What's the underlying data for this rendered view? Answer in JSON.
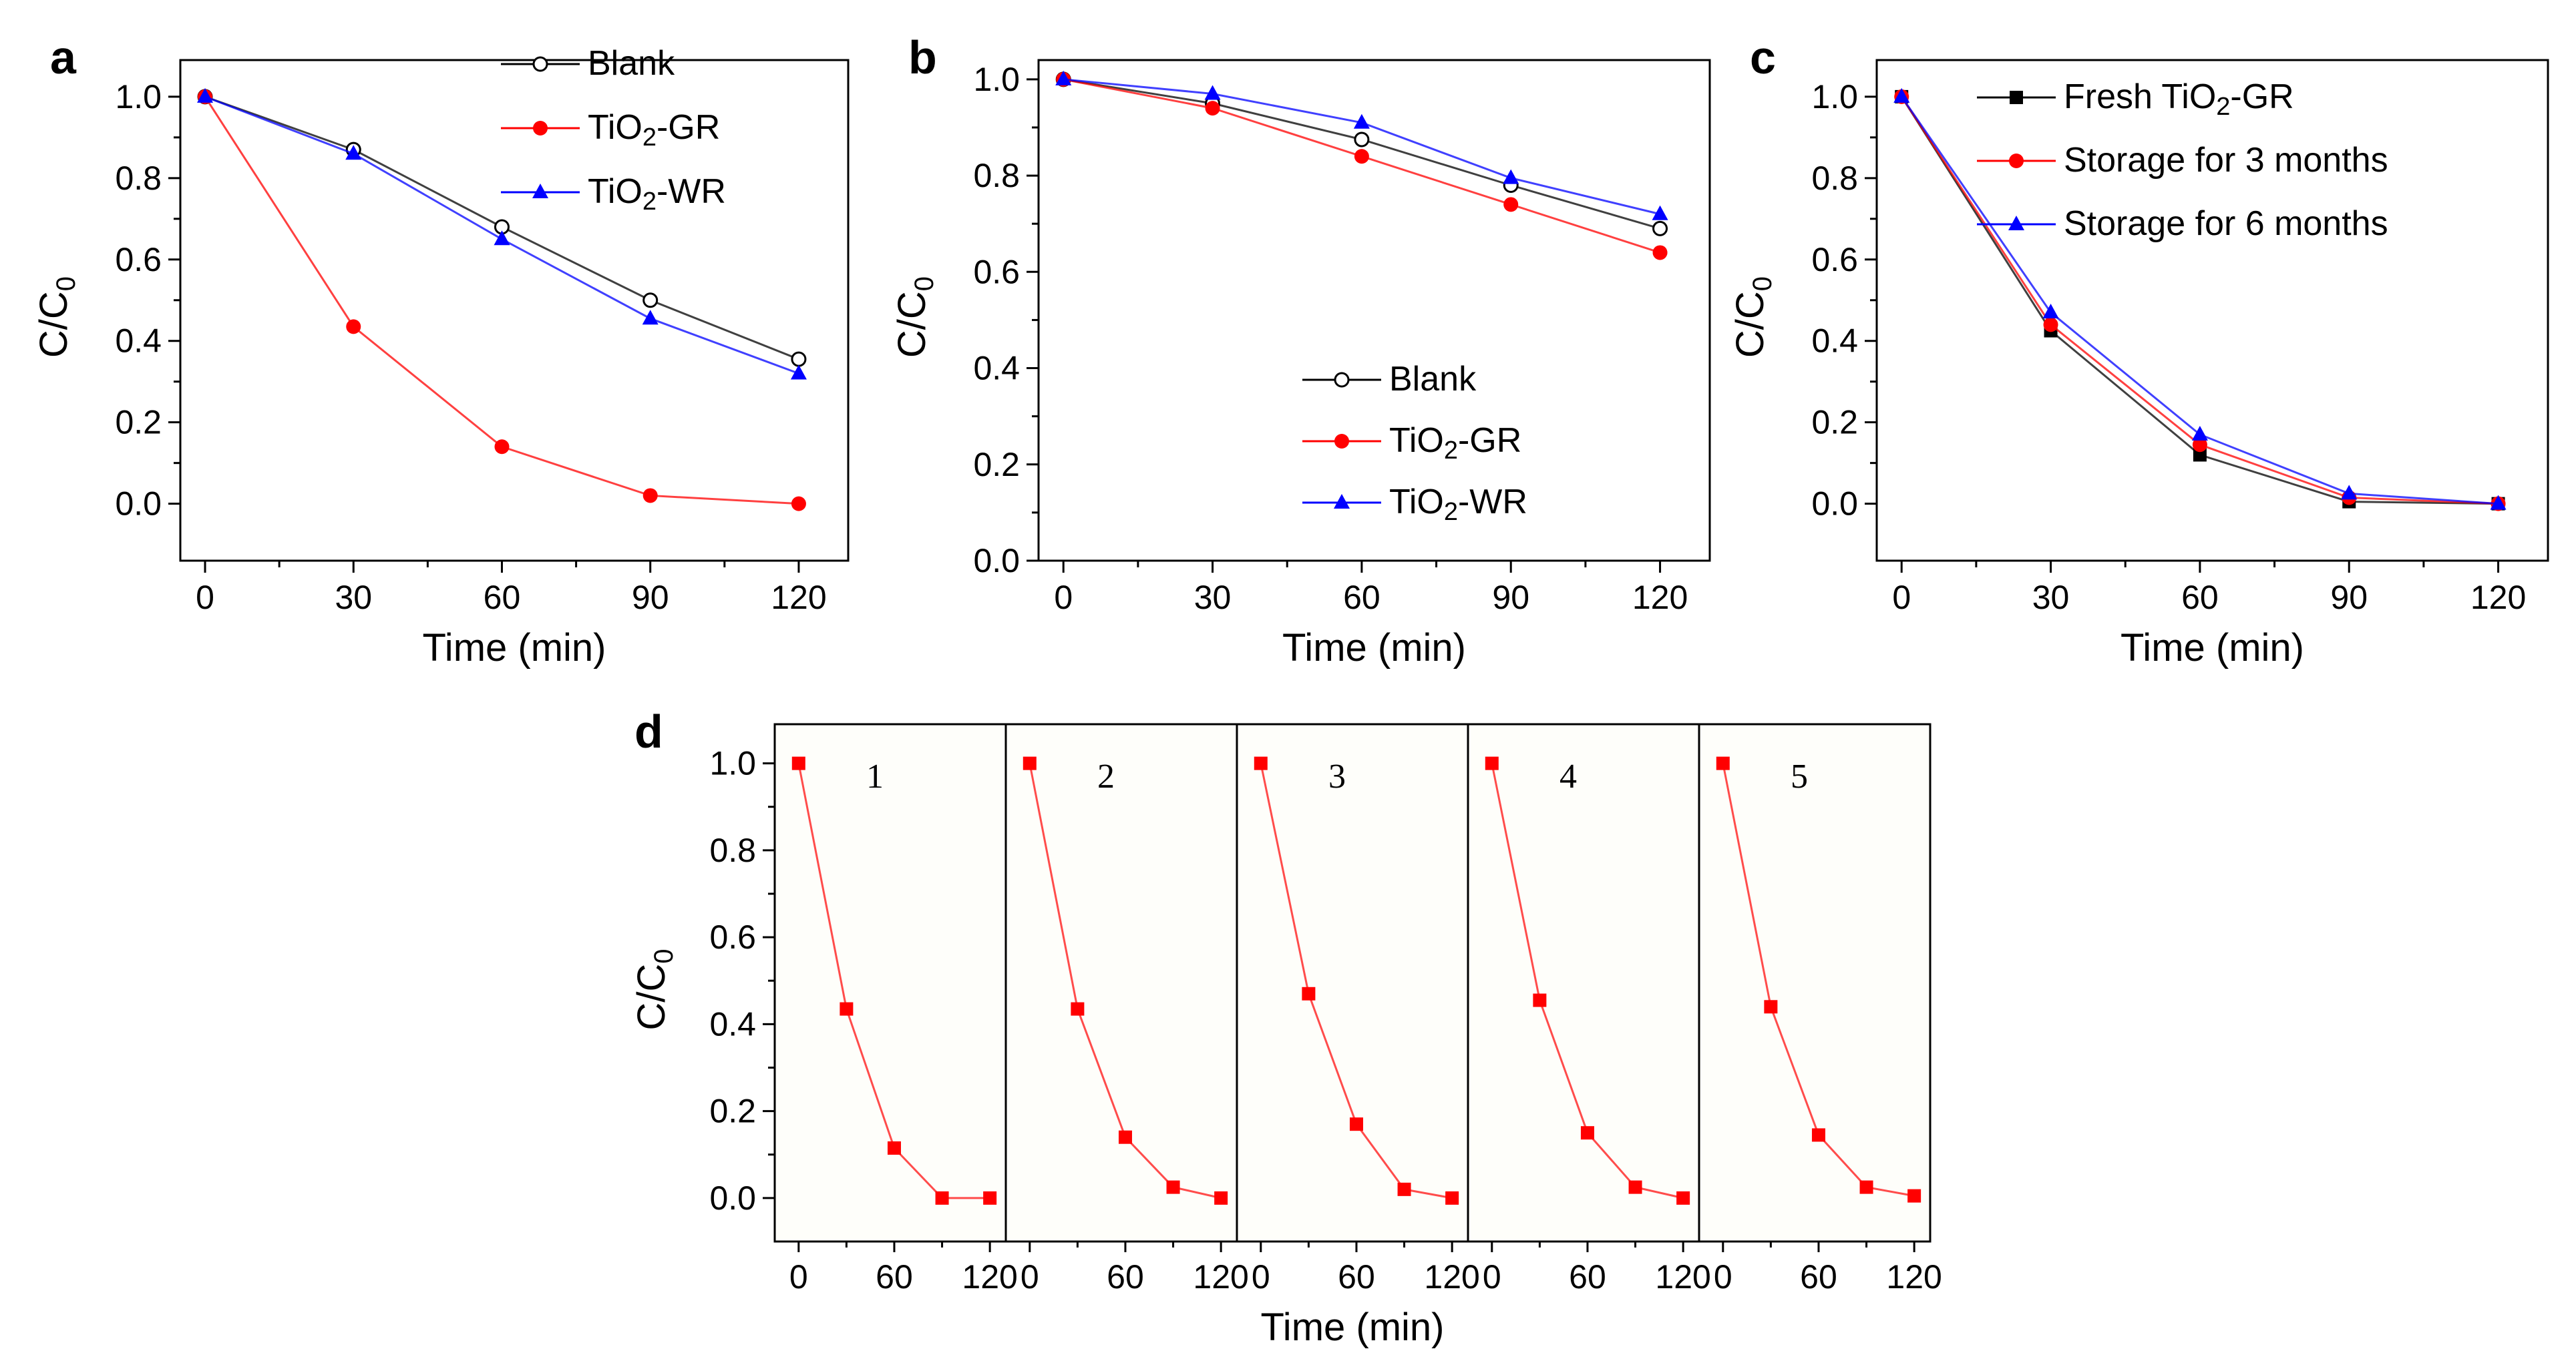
{
  "chart_data": [
    {
      "id": "a",
      "type": "line",
      "panel_label": "a",
      "xlabel": "Time (min)",
      "ylabel": "C/C0",
      "xlim": [
        -5,
        130
      ],
      "ylim": [
        -0.14,
        1.09
      ],
      "xticks": [
        0,
        30,
        60,
        90,
        120
      ],
      "yticks": [
        0.0,
        0.2,
        0.4,
        0.6,
        0.8,
        1.0
      ],
      "x": [
        0,
        30,
        60,
        90,
        120
      ],
      "legend_position": "top-right",
      "series": [
        {
          "name": "Blank",
          "color": "#000000",
          "marker": "open-circle",
          "values": [
            1.0,
            0.87,
            0.68,
            0.5,
            0.355
          ]
        },
        {
          "name": "TiO2-GR",
          "color": "#ff0000",
          "marker": "filled-circle",
          "values": [
            1.0,
            0.435,
            0.14,
            0.02,
            0.0
          ]
        },
        {
          "name": "TiO2-WR",
          "color": "#0000ff",
          "marker": "filled-triangle",
          "values": [
            1.0,
            0.86,
            0.65,
            0.455,
            0.32
          ]
        }
      ]
    },
    {
      "id": "b",
      "type": "line",
      "panel_label": "b",
      "xlabel": "Time (min)",
      "ylabel": "C/C0",
      "xlim": [
        -5,
        130
      ],
      "ylim": [
        0.0,
        1.04
      ],
      "xticks": [
        0,
        30,
        60,
        90,
        120
      ],
      "yticks": [
        0.0,
        0.2,
        0.4,
        0.6,
        0.8,
        1.0
      ],
      "x": [
        0,
        30,
        60,
        90,
        120
      ],
      "legend_position": "bottom-right",
      "series": [
        {
          "name": "Blank",
          "color": "#000000",
          "marker": "open-circle",
          "values": [
            1.0,
            0.95,
            0.875,
            0.78,
            0.69
          ]
        },
        {
          "name": "TiO2-GR",
          "color": "#ff0000",
          "marker": "filled-circle",
          "values": [
            1.0,
            0.94,
            0.84,
            0.74,
            0.64
          ]
        },
        {
          "name": "TiO2-WR",
          "color": "#0000ff",
          "marker": "filled-triangle",
          "values": [
            1.0,
            0.97,
            0.91,
            0.795,
            0.72
          ]
        }
      ]
    },
    {
      "id": "c",
      "type": "line",
      "panel_label": "c",
      "xlabel": "Time (min)",
      "ylabel": "C/C0",
      "xlim": [
        -5,
        130
      ],
      "ylim": [
        -0.14,
        1.09
      ],
      "xticks": [
        0,
        30,
        60,
        90,
        120
      ],
      "yticks": [
        0.0,
        0.2,
        0.4,
        0.6,
        0.8,
        1.0
      ],
      "x": [
        0,
        30,
        60,
        90,
        120
      ],
      "legend_position": "top-right",
      "series": [
        {
          "name": "Fresh TiO2-GR",
          "color": "#000000",
          "marker": "filled-square",
          "values": [
            1.0,
            0.425,
            0.12,
            0.005,
            0.0
          ]
        },
        {
          "name": "Storage for 3 months",
          "color": "#ff0000",
          "marker": "filled-circle",
          "values": [
            1.0,
            0.44,
            0.145,
            0.015,
            0.0
          ]
        },
        {
          "name": "Storage for 6 months",
          "color": "#0000ff",
          "marker": "filled-triangle",
          "values": [
            1.0,
            0.47,
            0.17,
            0.025,
            0.0
          ]
        }
      ]
    },
    {
      "id": "d",
      "type": "line",
      "panel_label": "d",
      "xlabel": "Time (min)",
      "ylabel": "C/C0",
      "xlim": [
        -15,
        130
      ],
      "ylim": [
        -0.1,
        1.09
      ],
      "xticks": [
        0,
        60,
        120
      ],
      "yticks": [
        0.0,
        0.2,
        0.4,
        0.6,
        0.8,
        1.0
      ],
      "x": [
        0,
        30,
        60,
        90,
        120
      ],
      "marker_color": "#ff0000",
      "cycles": [
        {
          "label": "1",
          "values": [
            1.0,
            0.435,
            0.115,
            0.0,
            0.0
          ]
        },
        {
          "label": "2",
          "values": [
            1.0,
            0.435,
            0.14,
            0.025,
            0.0
          ]
        },
        {
          "label": "3",
          "values": [
            1.0,
            0.47,
            0.17,
            0.02,
            0.0
          ]
        },
        {
          "label": "4",
          "values": [
            1.0,
            0.455,
            0.15,
            0.025,
            0.0
          ]
        },
        {
          "label": "5",
          "values": [
            1.0,
            0.44,
            0.145,
            0.025,
            0.005
          ]
        }
      ]
    }
  ]
}
